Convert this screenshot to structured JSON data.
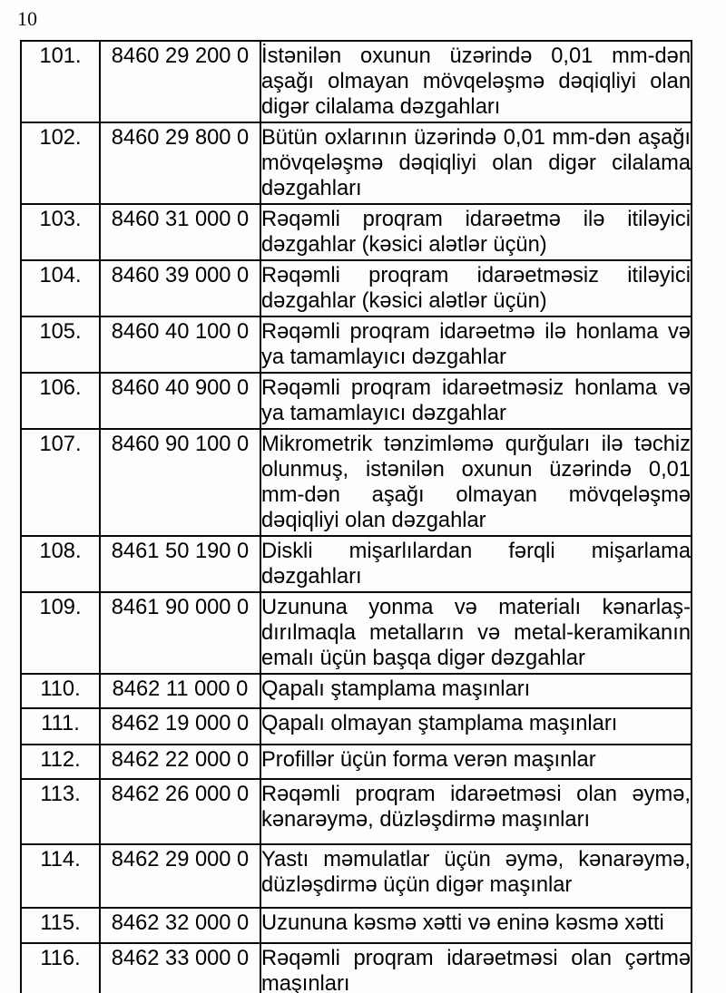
{
  "page": {
    "number": "10"
  },
  "table": {
    "rows": [
      {
        "no": "101.",
        "code": "8460 29 200 0",
        "desc": "İstənilən oxunun üzərində 0,01 mm-dən aşağı olmayan mövqeləşmə dəqiqliyi olan digər cilalama dəzgahları"
      },
      {
        "no": "102.",
        "code": "8460 29 800 0",
        "desc": "Bütün oxlarının üzərində 0,01 mm-dən aşağı mövqeləşmə dəqiqliyi olan digər cilalama dəzgahları"
      },
      {
        "no": "103.",
        "code": "8460 31 000 0",
        "desc": "Rəqəmli proqram idarəetmə ilə itiləyici dəzgahlar (kəsici alətlər üçün)"
      },
      {
        "no": "104.",
        "code": "8460 39 000 0",
        "desc": "Rəqəmli proqram idarəetməsiz itiləyici dəzgahlar (kəsici alətlər üçün)"
      },
      {
        "no": "105.",
        "code": "8460 40 100 0",
        "desc": "Rəqəmli proqram idarəetmə ilə honlama və ya tamamlayıcı dəzgahlar"
      },
      {
        "no": "106.",
        "code": "8460 40 900 0",
        "desc": "Rəqəmli proqram idarəetməsiz honlama və ya tamamlayıcı dəzgahlar"
      },
      {
        "no": "107.",
        "code": "8460 90 100 0",
        "desc": "Mikrometrik tənzimləmə qurğuları ilə təchiz olunmuş, istənilən oxunun üzərində 0,01 mm-dən aşağı olmayan mövqeləşmə dəqiqliyi olan dəzgahlar"
      },
      {
        "no": "108.",
        "code": "8461 50 190 0",
        "desc": "Diskli mişarlılardan fərqli mişarlama dəzgahları"
      },
      {
        "no": "109.",
        "code": "8461 90 000 0",
        "desc": "Uzununa yonma və materialı kənarlaş-dırılmaqla metalların və metal-keramikanın emalı üçün başqa digər dəzgahlar"
      },
      {
        "no": "110.",
        "code": "8462 11 000 0",
        "desc": "Qapalı ştamplama maşınları"
      },
      {
        "no": "111.",
        "code": "8462 19 000 0",
        "desc": "Qapalı olmayan ştamplama maşınları"
      },
      {
        "no": "112.",
        "code": "8462 22 000 0",
        "desc": "Profillər üçün forma verən maşınlar"
      },
      {
        "no": "113.",
        "code": "8462 26 000 0",
        "desc": "Rəqəmli proqram idarəetməsi olan əymə, kənarəymə, düzləşdirmə maşınları"
      },
      {
        "no": "114.",
        "code": "8462 29 000 0",
        "desc": "Yastı məmulatlar üçün əymə, kənarəymə, düzləşdirmə üçün digər maşınlar"
      },
      {
        "no": "115.",
        "code": "8462 32 000 0",
        "desc": "Uzununa kəsmə xətti və eninə kəsmə xətti"
      },
      {
        "no": "116.",
        "code": "8462 33 000 0",
        "desc": "Rəqəmli proqram idarəetməsi olan çərtmə maşınları"
      }
    ]
  }
}
